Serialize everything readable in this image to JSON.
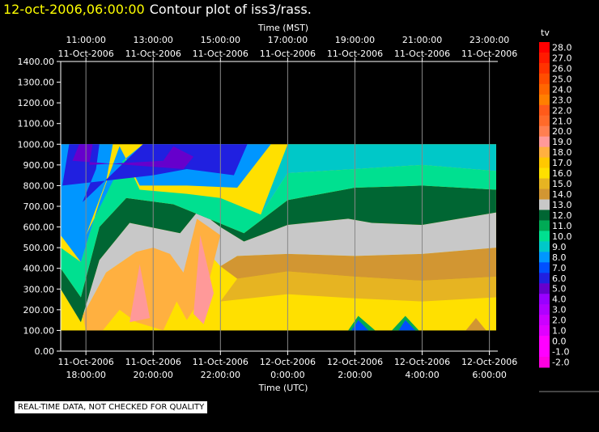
{
  "title": {
    "date": "12-oct-2006,06:00:00",
    "text": "Contour plot of iss3/rass."
  },
  "notice": "REAL-TIME DATA, NOT CHECKED FOR QUALITY",
  "colors": {
    "background": "#000000",
    "title_date": "#ffff00",
    "grid": "#888888"
  },
  "chart_data": {
    "type": "heatmap",
    "top_axis": {
      "label": "Time (MST)",
      "ticks": [
        {
          "time": "11:00:00",
          "date": "11-Oct-2006"
        },
        {
          "time": "13:00:00",
          "date": "11-Oct-2006"
        },
        {
          "time": "15:00:00",
          "date": "11-Oct-2006"
        },
        {
          "time": "17:00:00",
          "date": "11-Oct-2006"
        },
        {
          "time": "19:00:00",
          "date": "11-Oct-2006"
        },
        {
          "time": "21:00:00",
          "date": "11-Oct-2006"
        },
        {
          "time": "23:00:00",
          "date": "11-Oct-2006"
        }
      ]
    },
    "bottom_axis": {
      "label": "Time (UTC)",
      "ticks": [
        {
          "date": "11-Oct-2006",
          "time": "18:00:00"
        },
        {
          "date": "11-Oct-2006",
          "time": "20:00:00"
        },
        {
          "date": "11-Oct-2006",
          "time": "22:00:00"
        },
        {
          "date": "12-Oct-2006",
          "time": "0:00:00"
        },
        {
          "date": "12-Oct-2006",
          "time": "2:00:00"
        },
        {
          "date": "12-Oct-2006",
          "time": "4:00:00"
        },
        {
          "date": "12-Oct-2006",
          "time": "6:00:00"
        }
      ]
    },
    "x_hours_utc": [
      18,
      20,
      22,
      24,
      26,
      28,
      30
    ],
    "xlim_hours_utc": [
      17.25,
      30.25
    ],
    "ylim": [
      0,
      1400
    ],
    "y_ticks": [
      "0.00",
      "100.00",
      "200.00",
      "300.00",
      "400.00",
      "500.00",
      "600.00",
      "700.00",
      "800.00",
      "900.00",
      "1000.00",
      "1100.00",
      "1200.00",
      "1300.00",
      "1400.00"
    ],
    "y_tick_values": [
      0,
      100,
      200,
      300,
      400,
      500,
      600,
      700,
      800,
      900,
      1000,
      1100,
      1200,
      1300,
      1400
    ],
    "data_extent": {
      "x": [
        17.25,
        30.2
      ],
      "y": [
        100,
        1000
      ]
    },
    "colorbar": {
      "label": "tv",
      "levels": [
        "28.0",
        "27.0",
        "26.0",
        "25.0",
        "24.0",
        "23.0",
        "22.0",
        "21.0",
        "20.0",
        "19.0",
        "18.0",
        "17.0",
        "16.0",
        "15.0",
        "14.0",
        "13.0",
        "12.0",
        "11.0",
        "10.0",
        "9.0",
        "8.0",
        "7.0",
        "6.0",
        "5.0",
        "4.0",
        "3.0",
        "2.0",
        "1.0",
        "0.0",
        "-1.0",
        "-2.0"
      ],
      "colors": [
        "#ff0000",
        "#ff1a00",
        "#ff3300",
        "#ff4d00",
        "#ff6600",
        "#ff7f00",
        "#ff5a1a",
        "#ff6a2a",
        "#ff7f50",
        "#ff9999",
        "#ffb040",
        "#ffc800",
        "#ffe000",
        "#e6b422",
        "#d29632",
        "#c8c8c8",
        "#006633",
        "#00aa55",
        "#00e090",
        "#00c8c8",
        "#0096ff",
        "#0050ff",
        "#2020e0",
        "#6600cc",
        "#9900ff",
        "#b000ff",
        "#cc00ff",
        "#e000ff",
        "#ff00ff",
        "#ff00ff",
        "#ff00e0"
      ]
    },
    "contour_bands": [
      {
        "color": "#ffe000",
        "points": [
          [
            17.25,
            100
          ],
          [
            30.2,
            100
          ],
          [
            30.2,
            260
          ],
          [
            28,
            240
          ],
          [
            26,
            255
          ],
          [
            24,
            275
          ],
          [
            22,
            240
          ],
          [
            20.5,
            250
          ],
          [
            19,
            120
          ],
          [
            17.25,
            130
          ]
        ]
      },
      {
        "color": "#e6b422",
        "points": [
          [
            24,
            275
          ],
          [
            26,
            255
          ],
          [
            28,
            240
          ],
          [
            30.2,
            260
          ],
          [
            30.2,
            360
          ],
          [
            28,
            340
          ],
          [
            26,
            360
          ],
          [
            24,
            385
          ],
          [
            22.5,
            350
          ],
          [
            22,
            240
          ]
        ]
      },
      {
        "color": "#d29632",
        "points": [
          [
            22,
            410
          ],
          [
            22.5,
            460
          ],
          [
            24,
            470
          ],
          [
            26,
            460
          ],
          [
            28,
            470
          ],
          [
            30.2,
            500
          ],
          [
            30.2,
            360
          ],
          [
            28,
            340
          ],
          [
            26,
            360
          ],
          [
            24,
            385
          ],
          [
            22.5,
            350
          ]
        ]
      },
      {
        "color": "#c8c8c8",
        "points": [
          [
            17.25,
            300
          ],
          [
            17.85,
            140
          ],
          [
            18.4,
            440
          ],
          [
            19.3,
            620
          ],
          [
            20.8,
            570
          ],
          [
            21.35,
            680
          ],
          [
            22,
            600
          ],
          [
            22.7,
            530
          ],
          [
            24,
            610
          ],
          [
            25.8,
            640
          ],
          [
            26.5,
            620
          ],
          [
            28,
            610
          ],
          [
            30.2,
            670
          ],
          [
            30.2,
            500
          ],
          [
            28,
            470
          ],
          [
            26,
            460
          ],
          [
            24,
            470
          ],
          [
            22.5,
            460
          ],
          [
            22,
            410
          ],
          [
            21.5,
            500
          ],
          [
            20.9,
            380
          ],
          [
            19.5,
            480
          ],
          [
            18.6,
            380
          ],
          [
            17.9,
            170
          ]
        ]
      },
      {
        "color": "#006633",
        "points": [
          [
            17.25,
            400
          ],
          [
            17.85,
            260
          ],
          [
            18.4,
            600
          ],
          [
            19.2,
            740
          ],
          [
            20.6,
            710
          ],
          [
            21.5,
            650
          ],
          [
            22.7,
            570
          ],
          [
            24,
            730
          ],
          [
            26,
            790
          ],
          [
            28,
            800
          ],
          [
            30.2,
            780
          ],
          [
            30.2,
            670
          ],
          [
            28,
            610
          ],
          [
            26.5,
            620
          ],
          [
            25.8,
            640
          ],
          [
            24,
            610
          ],
          [
            22.7,
            530
          ],
          [
            22,
            600
          ],
          [
            21.35,
            680
          ],
          [
            20.8,
            570
          ],
          [
            19.3,
            620
          ],
          [
            18.4,
            440
          ],
          [
            17.85,
            140
          ],
          [
            17.25,
            300
          ]
        ]
      },
      {
        "color": "#00e090",
        "points": [
          [
            17.25,
            500
          ],
          [
            17.85,
            430
          ],
          [
            18.4,
            720
          ],
          [
            19.0,
            990
          ],
          [
            19.6,
            780
          ],
          [
            21.0,
            760
          ],
          [
            22.0,
            740
          ],
          [
            23.2,
            660
          ],
          [
            24.0,
            860
          ],
          [
            26,
            880
          ],
          [
            28,
            900
          ],
          [
            30.2,
            870
          ],
          [
            30.2,
            780
          ],
          [
            28,
            800
          ],
          [
            26,
            790
          ],
          [
            24,
            730
          ],
          [
            22.7,
            570
          ],
          [
            21.5,
            650
          ],
          [
            20.6,
            710
          ],
          [
            19.2,
            740
          ],
          [
            18.4,
            600
          ],
          [
            17.85,
            260
          ],
          [
            17.25,
            400
          ]
        ]
      },
      {
        "color": "#00c8c8",
        "points": [
          [
            23.2,
            660
          ],
          [
            24,
            1000
          ],
          [
            30.2,
            1000
          ],
          [
            30.2,
            870
          ],
          [
            28,
            900
          ],
          [
            26,
            880
          ],
          [
            24,
            860
          ]
        ]
      },
      {
        "color": "#0096ff",
        "points": [
          [
            17.25,
            560
          ],
          [
            17.25,
            1000
          ],
          [
            18.8,
            1000
          ],
          [
            18.6,
            820
          ],
          [
            18.0,
            560
          ],
          [
            19.1,
            920
          ],
          [
            19.7,
            1000
          ],
          [
            23.5,
            1000
          ],
          [
            22.5,
            790
          ],
          [
            21.0,
            800
          ],
          [
            19.6,
            800
          ],
          [
            19.0,
            990
          ],
          [
            18.4,
            720
          ],
          [
            17.85,
            430
          ]
        ]
      },
      {
        "color": "#2020e0",
        "points": [
          [
            17.3,
            800
          ],
          [
            17.5,
            1000
          ],
          [
            18.4,
            1000
          ],
          [
            18.3,
            880
          ],
          [
            17.9,
            720
          ],
          [
            19.7,
            1000
          ],
          [
            22.8,
            1000
          ],
          [
            22.4,
            850
          ],
          [
            21.0,
            880
          ],
          [
            20.0,
            850
          ]
        ]
      },
      {
        "color": "#6600cc",
        "points": [
          [
            17.6,
            920
          ],
          [
            17.8,
            1000
          ],
          [
            18.2,
            1000
          ],
          [
            18.1,
            900
          ],
          [
            20.3,
            920
          ],
          [
            20.6,
            990
          ],
          [
            21.2,
            940
          ],
          [
            20.9,
            880
          ]
        ]
      },
      {
        "color": "#ffb040",
        "points": [
          [
            17.9,
            170
          ],
          [
            18.6,
            380
          ],
          [
            19.5,
            480
          ],
          [
            20.0,
            500
          ],
          [
            20.5,
            470
          ],
          [
            20.9,
            380
          ],
          [
            21.3,
            640
          ],
          [
            22.0,
            560
          ],
          [
            21.6,
            300
          ],
          [
            21.0,
            150
          ],
          [
            20.7,
            240
          ],
          [
            20.3,
            100
          ],
          [
            19.5,
            140
          ],
          [
            19.0,
            200
          ],
          [
            18.5,
            100
          ],
          [
            18.0,
            100
          ]
        ]
      },
      {
        "color": "#ff9999",
        "points": [
          [
            19.3,
            140
          ],
          [
            19.6,
            420
          ],
          [
            19.9,
            160
          ]
        ]
      },
      {
        "color": "#ff9999",
        "points": [
          [
            21.2,
            180
          ],
          [
            21.4,
            560
          ],
          [
            21.8,
            280
          ],
          [
            21.5,
            130
          ]
        ]
      },
      {
        "color": "#00aa55",
        "points": [
          [
            25.8,
            100
          ],
          [
            26.1,
            170
          ],
          [
            26.6,
            100
          ]
        ]
      },
      {
        "color": "#0050ff",
        "points": [
          [
            25.9,
            100
          ],
          [
            26.1,
            150
          ],
          [
            26.4,
            100
          ]
        ]
      },
      {
        "color": "#00aa55",
        "points": [
          [
            27.1,
            100
          ],
          [
            27.5,
            170
          ],
          [
            27.9,
            100
          ]
        ]
      },
      {
        "color": "#0050ff",
        "points": [
          [
            27.3,
            100
          ],
          [
            27.5,
            150
          ],
          [
            27.8,
            100
          ]
        ]
      },
      {
        "color": "#d29632",
        "points": [
          [
            29.3,
            100
          ],
          [
            29.6,
            160
          ],
          [
            29.9,
            100
          ]
        ]
      }
    ]
  }
}
